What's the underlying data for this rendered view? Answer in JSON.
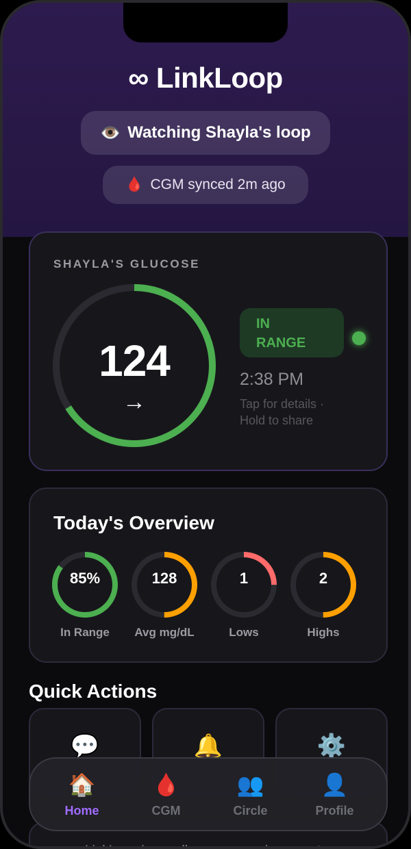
{
  "app": {
    "brand_icon": "∞",
    "brand_name": "LinkLoop"
  },
  "header": {
    "watching_icon": "👁️",
    "watching_text": "Watching Shayla's loop",
    "sync_icon": "🩸",
    "sync_text": "CGM synced 2m ago"
  },
  "glucose": {
    "title": "SHAYLA'S GLUCOSE",
    "value": "124",
    "trend_arrow": "→",
    "trend_icon": "arrow-right-icon",
    "ring_fraction": 0.66,
    "status_line1": "IN",
    "status_line2": "RANGE",
    "time": "2:38 PM",
    "hint_line1": "Tap for details ·",
    "hint_line2": "Hold to share",
    "colors": {
      "in_range": "#4caf50",
      "track": "#2a2a30"
    }
  },
  "overview": {
    "title": "Today's Overview",
    "stats": [
      {
        "value": "85%",
        "label": "In Range",
        "fraction": 0.85,
        "color": "#4caf50"
      },
      {
        "value": "128",
        "label": "Avg mg/dL",
        "fraction": 0.5,
        "color": "#ffa000"
      },
      {
        "value": "1",
        "label": "Lows",
        "fraction": 0.25,
        "color": "#ff6b6b"
      },
      {
        "value": "2",
        "label": "Highs",
        "fraction": 0.5,
        "color": "#ffa000"
      }
    ]
  },
  "quick_actions": {
    "title": "Quick Actions",
    "items": [
      {
        "icon": "💬",
        "icon_name": "chat-bubble-icon"
      },
      {
        "icon": "🔔",
        "icon_name": "bell-icon"
      },
      {
        "icon": "⚙️",
        "icon_name": "gear-icon"
      }
    ]
  },
  "disclaimer": {
    "text": "LinkLoop is a wellness companion — not a"
  },
  "tabs": [
    {
      "icon": "🏠",
      "label": "Home",
      "active": true
    },
    {
      "icon": "🩸",
      "label": "CGM",
      "active": false
    },
    {
      "icon": "👥",
      "label": "Circle",
      "active": false
    },
    {
      "icon": "👤",
      "label": "Profile",
      "active": false
    }
  ],
  "colors": {
    "accent": "#a06cff",
    "hero_bg": "#2d1b4e",
    "card_bg": "#17171b"
  }
}
